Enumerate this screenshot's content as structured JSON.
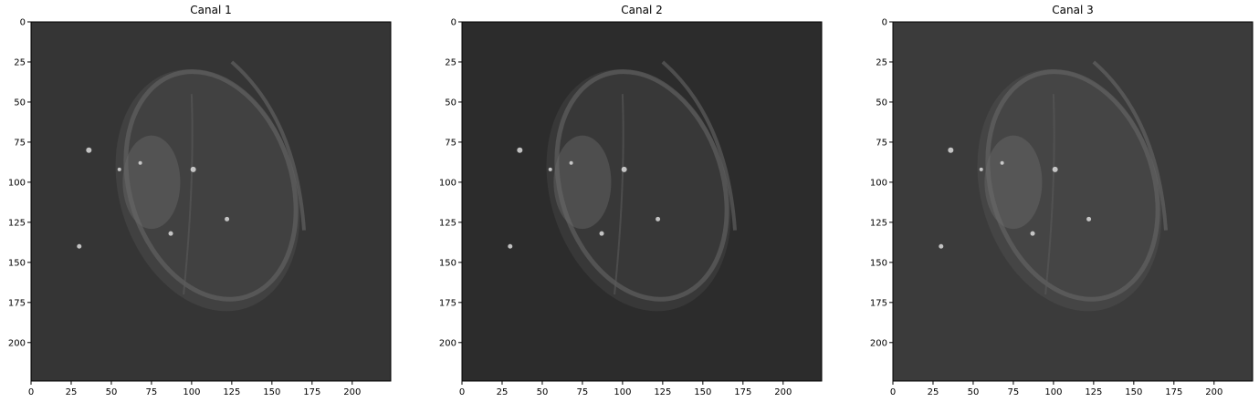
{
  "figure": {
    "panels": [
      {
        "title": "Canal 1",
        "background": "#353535",
        "brain_tone": "#4a4a4a"
      },
      {
        "title": "Canal 2",
        "background": "#2c2c2c",
        "brain_tone": "#434343"
      },
      {
        "title": "Canal 3",
        "background": "#3b3b3b",
        "brain_tone": "#4f4f4f"
      }
    ],
    "x_ticks": [
      "0",
      "25",
      "50",
      "75",
      "100",
      "125",
      "150",
      "175",
      "200"
    ],
    "y_ticks": [
      "0",
      "25",
      "50",
      "75",
      "100",
      "125",
      "150",
      "175",
      "200"
    ],
    "axis_range": [
      0,
      224
    ]
  }
}
